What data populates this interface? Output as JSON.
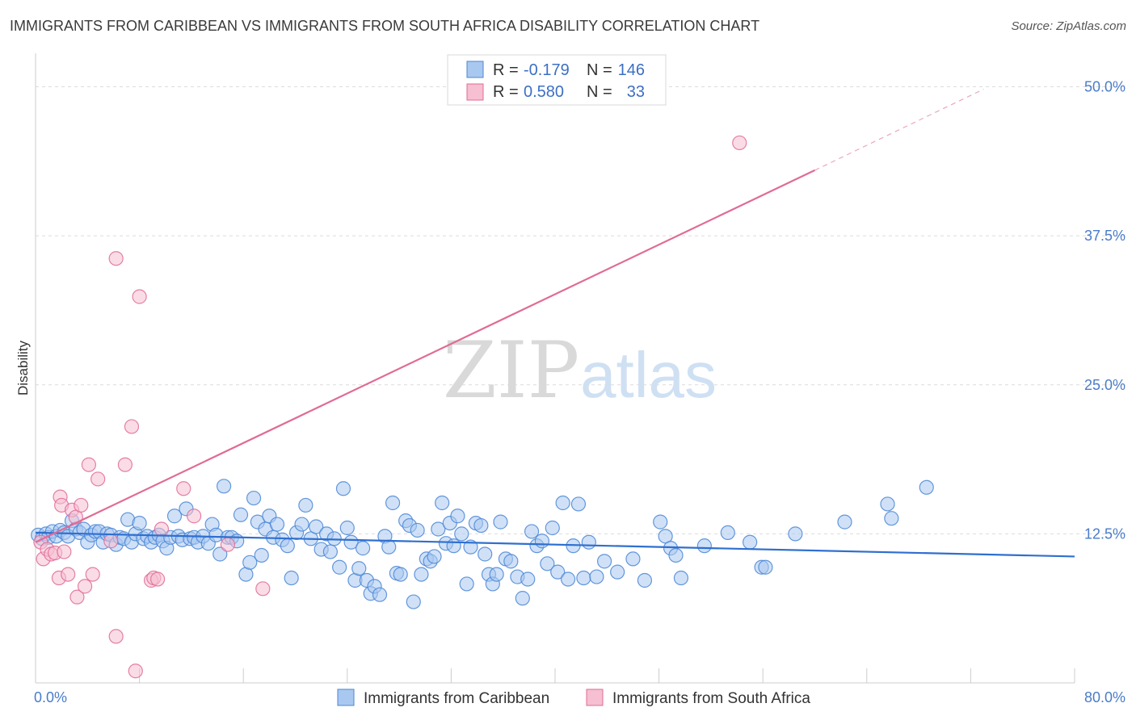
{
  "title": "IMMIGRANTS FROM CARIBBEAN VS IMMIGRANTS FROM SOUTH AFRICA DISABILITY CORRELATION CHART",
  "source": "Source: ZipAtlas.com",
  "watermark": {
    "zip": "ZIP",
    "atlas": "atlas"
  },
  "colors": {
    "blue": "#4a86d6",
    "blue_fill": "#a9c8f0",
    "pink": "#e06b96",
    "pink_fill": "#f6bfd2",
    "tick": "#4a7cc9"
  },
  "chart_data": {
    "type": "scatter",
    "ylabel": "Disability",
    "xlim": [
      0,
      80
    ],
    "ylim": [
      0,
      52
    ],
    "x_tick_labels": [
      {
        "v": 0,
        "label": "0.0%"
      },
      {
        "v": 80,
        "label": "80.0%"
      }
    ],
    "y_ticks": [
      {
        "v": 12.5,
        "label": "12.5%"
      },
      {
        "v": 25,
        "label": "25.0%"
      },
      {
        "v": 37.5,
        "label": "37.5%"
      },
      {
        "v": 50,
        "label": "50.0%"
      }
    ],
    "legend": [
      {
        "r_label": "R =",
        "r": "-0.179",
        "n_label": "N =",
        "n": "146"
      },
      {
        "r_label": "R =",
        "r": "0.580",
        "n_label": "N =",
        "n": "33"
      }
    ],
    "series": [
      {
        "name": "Immigrants from Caribbean",
        "trend": {
          "x0": 0,
          "y0": 12.6,
          "x1": 80,
          "y1": 10.6
        },
        "points": [
          [
            0.2,
            12.4
          ],
          [
            0.5,
            12.1
          ],
          [
            0.8,
            12.5
          ],
          [
            1,
            12.2
          ],
          [
            1.3,
            12.7
          ],
          [
            1.6,
            12.3
          ],
          [
            1.9,
            12.8
          ],
          [
            2.2,
            12.6
          ],
          [
            2.5,
            12.3
          ],
          [
            2.8,
            13.6
          ],
          [
            3.1,
            12.9
          ],
          [
            3.4,
            12.6
          ],
          [
            3.7,
            12.9
          ],
          [
            4,
            11.8
          ],
          [
            4.3,
            12.4
          ],
          [
            4.6,
            12.7
          ],
          [
            4.9,
            12.7
          ],
          [
            5.2,
            11.8
          ],
          [
            5.5,
            12.5
          ],
          [
            5.8,
            12.4
          ],
          [
            6.2,
            11.6
          ],
          [
            6.5,
            12.2
          ],
          [
            6.8,
            12.1
          ],
          [
            7.1,
            13.7
          ],
          [
            7.4,
            11.8
          ],
          [
            7.7,
            12.5
          ],
          [
            8,
            13.4
          ],
          [
            8.3,
            12.1
          ],
          [
            8.6,
            12.3
          ],
          [
            8.9,
            11.8
          ],
          [
            9.2,
            12.2
          ],
          [
            9.5,
            12.4
          ],
          [
            9.8,
            11.9
          ],
          [
            10.1,
            11.3
          ],
          [
            10.4,
            12.2
          ],
          [
            10.7,
            14
          ],
          [
            11,
            12.3
          ],
          [
            11.3,
            12
          ],
          [
            11.6,
            14.6
          ],
          [
            11.9,
            12.1
          ],
          [
            12.2,
            12.2
          ],
          [
            12.5,
            11.8
          ],
          [
            12.9,
            12.3
          ],
          [
            13.3,
            11.7
          ],
          [
            13.6,
            13.3
          ],
          [
            13.9,
            12.4
          ],
          [
            14.2,
            10.8
          ],
          [
            14.5,
            16.5
          ],
          [
            14.8,
            12.2
          ],
          [
            15.1,
            12.2
          ],
          [
            15.5,
            11.9
          ],
          [
            15.8,
            14.1
          ],
          [
            16.2,
            9.1
          ],
          [
            16.5,
            10.1
          ],
          [
            16.8,
            15.5
          ],
          [
            17.1,
            13.5
          ],
          [
            17.4,
            10.7
          ],
          [
            17.7,
            12.9
          ],
          [
            18,
            14
          ],
          [
            18.3,
            12.2
          ],
          [
            18.6,
            13.3
          ],
          [
            19,
            12
          ],
          [
            19.4,
            11.5
          ],
          [
            19.7,
            8.8
          ],
          [
            20.1,
            12.6
          ],
          [
            20.5,
            13.3
          ],
          [
            20.8,
            14.9
          ],
          [
            21.2,
            12.1
          ],
          [
            21.6,
            13.1
          ],
          [
            22,
            11.2
          ],
          [
            22.4,
            12.5
          ],
          [
            22.7,
            11
          ],
          [
            23,
            12.1
          ],
          [
            23.4,
            9.7
          ],
          [
            23.7,
            16.3
          ],
          [
            24,
            13
          ],
          [
            24.3,
            11.8
          ],
          [
            24.6,
            8.6
          ],
          [
            24.9,
            9.6
          ],
          [
            25.2,
            11.3
          ],
          [
            25.5,
            8.6
          ],
          [
            25.8,
            7.5
          ],
          [
            26.1,
            8.1
          ],
          [
            26.5,
            7.4
          ],
          [
            26.9,
            12.3
          ],
          [
            27.2,
            11.4
          ],
          [
            27.5,
            15.1
          ],
          [
            27.8,
            9.2
          ],
          [
            28.1,
            9.1
          ],
          [
            28.5,
            13.6
          ],
          [
            28.8,
            13.2
          ],
          [
            29.1,
            6.8
          ],
          [
            29.4,
            12.8
          ],
          [
            29.7,
            9.1
          ],
          [
            30.1,
            10.4
          ],
          [
            30.4,
            10.2
          ],
          [
            30.7,
            10.6
          ],
          [
            31,
            12.9
          ],
          [
            31.3,
            15.1
          ],
          [
            31.6,
            11.7
          ],
          [
            31.9,
            13.4
          ],
          [
            32.2,
            11.5
          ],
          [
            32.5,
            14
          ],
          [
            32.8,
            12.5
          ],
          [
            33.2,
            8.3
          ],
          [
            33.5,
            11.4
          ],
          [
            33.9,
            13.4
          ],
          [
            34.3,
            13.2
          ],
          [
            34.6,
            10.8
          ],
          [
            34.9,
            9.1
          ],
          [
            35.2,
            8.3
          ],
          [
            35.5,
            9.1
          ],
          [
            35.8,
            13.5
          ],
          [
            36.2,
            10.4
          ],
          [
            36.6,
            10.2
          ],
          [
            37.1,
            8.9
          ],
          [
            37.5,
            7.1
          ],
          [
            37.9,
            8.7
          ],
          [
            38.2,
            12.7
          ],
          [
            38.6,
            11.5
          ],
          [
            39,
            11.9
          ],
          [
            39.4,
            10
          ],
          [
            39.8,
            13
          ],
          [
            40.2,
            9.3
          ],
          [
            40.6,
            15.1
          ],
          [
            41,
            8.7
          ],
          [
            41.4,
            11.5
          ],
          [
            41.8,
            15
          ],
          [
            42.2,
            8.8
          ],
          [
            42.6,
            11.8
          ],
          [
            43.2,
            8.9
          ],
          [
            43.8,
            10.2
          ],
          [
            44.8,
            9.3
          ],
          [
            46,
            10.4
          ],
          [
            46.9,
            8.6
          ],
          [
            48.1,
            13.5
          ],
          [
            48.5,
            12.3
          ],
          [
            48.9,
            11.3
          ],
          [
            49.3,
            10.7
          ],
          [
            49.7,
            8.8
          ],
          [
            51.5,
            11.5
          ],
          [
            53.3,
            12.6
          ],
          [
            55,
            11.8
          ],
          [
            55.9,
            9.7
          ],
          [
            56.2,
            9.7
          ],
          [
            58.5,
            12.5
          ],
          [
            62.3,
            13.5
          ],
          [
            65.6,
            15
          ],
          [
            65.9,
            13.8
          ],
          [
            68.6,
            16.4
          ]
        ]
      },
      {
        "name": "Immigrants from South Africa",
        "trend": {
          "x0": 0,
          "y0": 11.8,
          "x1": 60,
          "y1": 43.0,
          "dash_x1": 73,
          "dash_y1": 49.8
        },
        "points": [
          [
            0.4,
            11.8
          ],
          [
            0.6,
            10.4
          ],
          [
            0.9,
            11.2
          ],
          [
            1.2,
            10.8
          ],
          [
            1.5,
            10.9
          ],
          [
            1.8,
            8.8
          ],
          [
            1.9,
            15.6
          ],
          [
            2,
            14.9
          ],
          [
            2.2,
            11
          ],
          [
            2.5,
            9.1
          ],
          [
            2.8,
            14.5
          ],
          [
            3.1,
            13.9
          ],
          [
            3.2,
            7.2
          ],
          [
            3.5,
            14.9
          ],
          [
            3.8,
            8.1
          ],
          [
            4.1,
            18.3
          ],
          [
            4.4,
            9.1
          ],
          [
            4.8,
            17.1
          ],
          [
            5.8,
            11.9
          ],
          [
            6.2,
            35.6
          ],
          [
            6.2,
            3.9
          ],
          [
            6.9,
            18.3
          ],
          [
            7.4,
            21.5
          ],
          [
            7.7,
            1
          ],
          [
            8,
            32.4
          ],
          [
            8.9,
            8.6
          ],
          [
            9.1,
            8.8
          ],
          [
            9.4,
            8.7
          ],
          [
            9.7,
            12.9
          ],
          [
            11.4,
            16.3
          ],
          [
            12.2,
            14
          ],
          [
            14.8,
            11.6
          ],
          [
            17.5,
            7.9
          ],
          [
            54.2,
            45.3
          ]
        ]
      }
    ]
  },
  "bottom_legend": [
    {
      "label": "Immigrants from Caribbean"
    },
    {
      "label": "Immigrants from South Africa"
    }
  ]
}
